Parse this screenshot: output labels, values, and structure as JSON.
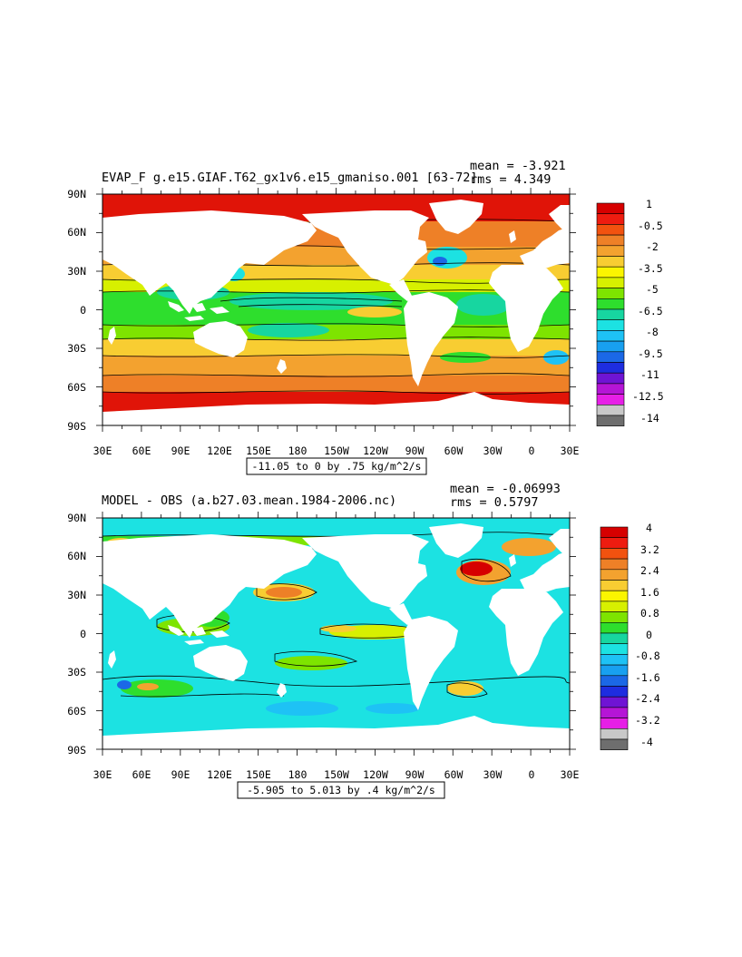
{
  "panels": [
    {
      "id": "top",
      "title": "EVAP_F g.e15.GIAF.T62_gx1v6.e15_gmaniso.001 [63-72]",
      "stats": [
        "mean = -3.921",
        "rms = 4.349"
      ],
      "contour_info": "-11.05 to 0 by .75 kg/m^2/s",
      "lat_labels": [
        "90N",
        "60N",
        "30N",
        "0",
        "30S",
        "60S",
        "90S"
      ],
      "lon_labels": [
        "30E",
        "60E",
        "90E",
        "120E",
        "150E",
        "180",
        "150W",
        "120W",
        "90W",
        "60W",
        "30W",
        "0",
        "30E"
      ],
      "colorbar_labels": [
        "1",
        "-0.5",
        "-2",
        "-3.5",
        "-5",
        "-6.5",
        "-8",
        "-9.5",
        "-11",
        "-12.5",
        "-14"
      ],
      "colorbar_colors": [
        "#d60000",
        "#ee1c10",
        "#f2520f",
        "#ee8027",
        "#f3a22f",
        "#f8cd32",
        "#fbf500",
        "#d7f000",
        "#7ee400",
        "#2ede2d",
        "#17d6a0",
        "#1ce2e2",
        "#1ec2f5",
        "#18a0f0",
        "#1b68e6",
        "#1e2de0",
        "#6f14d4",
        "#b515d6",
        "#e61fe6",
        "#c8c8c8",
        "#6e6e6e"
      ]
    },
    {
      "id": "bottom",
      "title": "MODEL - OBS (a.b27.03.mean.1984-2006.nc)",
      "stats": [
        "mean = -0.06993",
        "rms = 0.5797"
      ],
      "contour_info": "-5.905 to 5.013 by .4 kg/m^2/s",
      "lat_labels": [
        "90N",
        "60N",
        "30N",
        "0",
        "30S",
        "60S",
        "90S"
      ],
      "lon_labels": [
        "30E",
        "60E",
        "90E",
        "120E",
        "150E",
        "180",
        "150W",
        "120W",
        "90W",
        "60W",
        "30W",
        "0",
        "30E"
      ],
      "colorbar_labels": [
        "4",
        "3.2",
        "2.4",
        "1.6",
        "0.8",
        "0",
        "-0.8",
        "-1.6",
        "-2.4",
        "-3.2",
        "-4"
      ],
      "colorbar_colors": [
        "#d60000",
        "#ee1c10",
        "#f2520f",
        "#ee8027",
        "#f3a22f",
        "#f8cd32",
        "#fbf500",
        "#d7f000",
        "#7ee400",
        "#2ede2d",
        "#17d6a0",
        "#1ce2e2",
        "#1ec2f5",
        "#18a0f0",
        "#1b68e6",
        "#1e2de0",
        "#6f14d4",
        "#b515d6",
        "#e61fe6",
        "#c8c8c8",
        "#6e6e6e"
      ]
    }
  ]
}
